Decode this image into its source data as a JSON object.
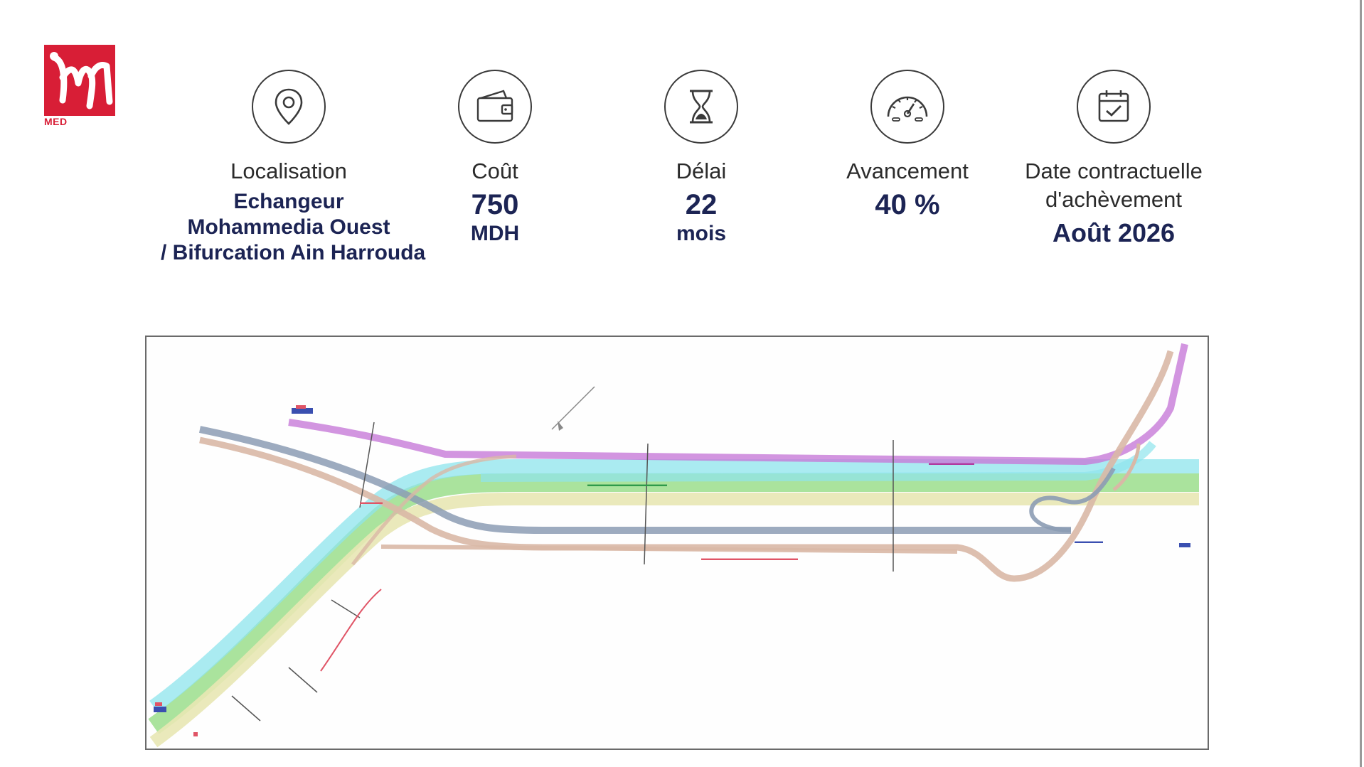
{
  "logo": {
    "mark": "M",
    "brand": "MED",
    "tagline": ""
  },
  "kpis": [
    {
      "icon": "location-pin-icon",
      "label": "Localisation",
      "value_lines": [
        "Echangeur",
        "Mohammedia Ouest",
        "/ Bifurcation Ain Harrouda"
      ]
    },
    {
      "icon": "wallet-icon",
      "label": "Coût",
      "value": "750",
      "unit": "MDH"
    },
    {
      "icon": "hourglass-icon",
      "label": "Délai",
      "value": "22",
      "unit": "mois"
    },
    {
      "icon": "speedometer-icon",
      "label": "Avancement",
      "value": "40 %"
    },
    {
      "icon": "calendar-check-icon",
      "label_lines": [
        "Date contractuelle",
        "d'achèvement"
      ],
      "value": "Août 2026"
    }
  ],
  "plan": {
    "icon": "road-plan-drawing",
    "colors": {
      "magenta": "#c77ad8",
      "cyan": "#8ee4ec",
      "green": "#9bde8c",
      "tan": "#d9b8a6",
      "yellow": "#e8e7b4",
      "blue_gray": "#8c9cb4",
      "frame": "#6a6a6a"
    }
  }
}
